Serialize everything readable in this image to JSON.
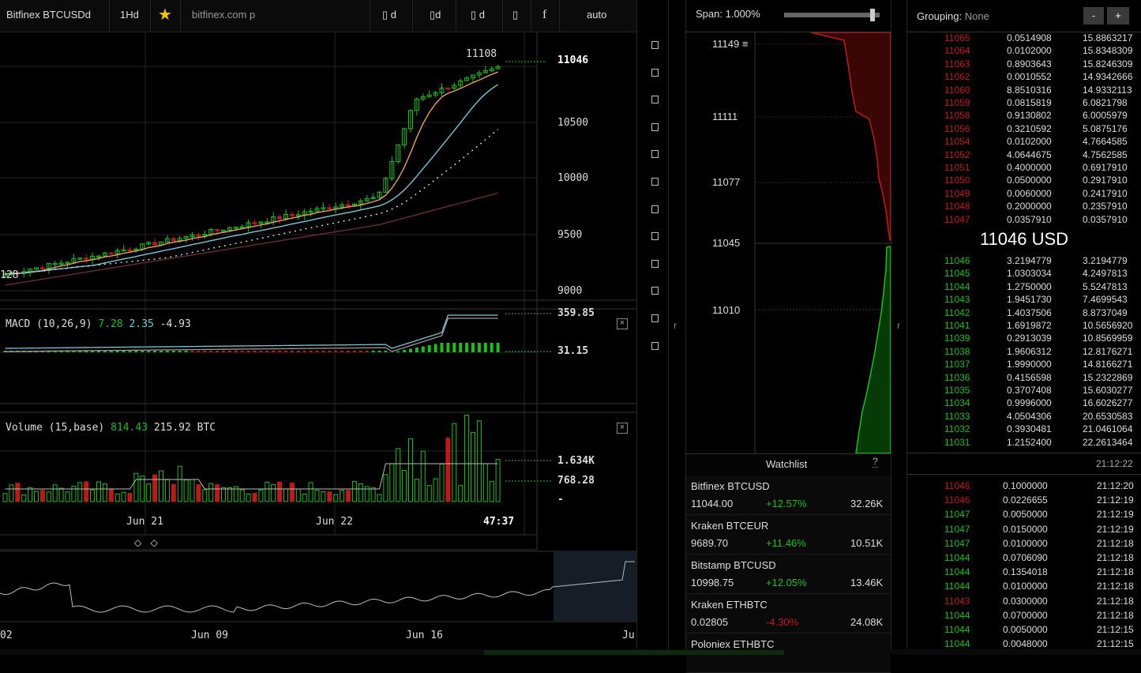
{
  "toolbar": {
    "symbol": "Bitfinex BTCUSDd",
    "interval": "1Hd",
    "star": "★",
    "url": "bitfinex.com p",
    "btn1": "▯ d",
    "btn2": "▯d",
    "btn3": "▯ d",
    "btn4": "▯",
    "btn5": "f",
    "scale": "auto"
  },
  "chart": {
    "price_axis": [
      "11046",
      "10500",
      "10000",
      "9500",
      "9000"
    ],
    "high_label": "11108",
    "low_label": "128",
    "last_price": "11046",
    "macd_title": "MACD (10,26,9)",
    "macd_v1": "7.28",
    "macd_v2": "2.35",
    "macd_v3": "-4.93",
    "macd_axis_top": "359.85",
    "macd_axis_mid": "31.15",
    "volume_title": "Volume (15,base)",
    "volume_v1": "814.43",
    "volume_v2": "215.92 BTC",
    "volume_axis_top": "1.634K",
    "volume_axis_mid": "768.28",
    "volume_axis_low": "-",
    "time_axis": [
      "Jun 21",
      "Jun 22"
    ],
    "cursor_time": "47:37",
    "nav_arrows": "◇ ◇",
    "navigator_dates": [
      "02",
      "Jun 09",
      "Jun 16",
      "Ju"
    ],
    "close_symbol": "×"
  },
  "depth": {
    "span_label": "Span:",
    "span_value": "1.000%",
    "span_fraction": 0.95,
    "price_labels": [
      "11149 ≡",
      "11111",
      "11077",
      "11045",
      "11010"
    ],
    "collapse_left": "r",
    "collapse_right": "r"
  },
  "watchlist": {
    "title": "Watchlist",
    "help": "?",
    "items": [
      {
        "name": "Bitfinex BTCUSD",
        "price": "11044.00",
        "change": "+12.57%",
        "volume": "32.26K",
        "up": true
      },
      {
        "name": "Kraken BTCEUR",
        "price": "9689.70",
        "change": "+11.46%",
        "volume": "10.51K",
        "up": true
      },
      {
        "name": "Bitstamp BTCUSD",
        "price": "10998.75",
        "change": "+12.05%",
        "volume": "13.46K",
        "up": true
      },
      {
        "name": "Kraken ETHBTC",
        "price": "0.02805",
        "change": "-4.30%",
        "volume": "24.08K",
        "up": false
      },
      {
        "name": "Poloniex ETHBTC",
        "price": "",
        "change": "",
        "volume": "",
        "up": true
      }
    ]
  },
  "orderbook": {
    "grouping_label": "Grouping:",
    "grouping_value": "None",
    "minus": "-",
    "plus": "+",
    "mid_price": "11046 USD",
    "asks": [
      [
        "11065",
        "0.0514908",
        "15.8863217"
      ],
      [
        "11064",
        "0.0102000",
        "15.8348309"
      ],
      [
        "11063",
        "0.8903643",
        "15.8246309"
      ],
      [
        "11062",
        "0.0010552",
        "14.9342666"
      ],
      [
        "11060",
        "8.8510316",
        "14.9332113"
      ],
      [
        "11059",
        "0.0815819",
        "6.0821798"
      ],
      [
        "11058",
        "0.9130802",
        "6.0005979"
      ],
      [
        "11056",
        "0.3210592",
        "5.0875176"
      ],
      [
        "11054",
        "0.0102000",
        "4.7664585"
      ],
      [
        "11052",
        "4.0644675",
        "4.7562585"
      ],
      [
        "11051",
        "0.4000000",
        "0.6917910"
      ],
      [
        "11050",
        "0.0500000",
        "0.2917910"
      ],
      [
        "11049",
        "0.0060000",
        "0.2417910"
      ],
      [
        "11048",
        "0.2000000",
        "0.2357910"
      ],
      [
        "11047",
        "0.0357910",
        "0.0357910"
      ]
    ],
    "bids": [
      [
        "11046",
        "3.2194779",
        "3.2194779"
      ],
      [
        "11045",
        "1.0303034",
        "4.2497813"
      ],
      [
        "11044",
        "1.2750000",
        "5.5247813"
      ],
      [
        "11043",
        "1.9451730",
        "7.4699543"
      ],
      [
        "11042",
        "1.4037506",
        "8.8737049"
      ],
      [
        "11041",
        "1.6919872",
        "10.5656920"
      ],
      [
        "11039",
        "0.2913039",
        "10.8569959"
      ],
      [
        "11038",
        "1.9606312",
        "12.8176271"
      ],
      [
        "11037",
        "1.9990000",
        "14.8166271"
      ],
      [
        "11036",
        "0.4156598",
        "15.2322869"
      ],
      [
        "11035",
        "0.3707408",
        "15.6030277"
      ],
      [
        "11034",
        "0.9996000",
        "16.6026277"
      ],
      [
        "11033",
        "4.0504306",
        "20.6530583"
      ],
      [
        "11032",
        "0.3930481",
        "21.0461064"
      ],
      [
        "11031",
        "1.2152400",
        "22.2613464"
      ]
    ],
    "book_time": "21:12:22"
  },
  "trades": [
    [
      "11046",
      "0.1000000",
      "21:12:20",
      "sell"
    ],
    [
      "11046",
      "0.0226655",
      "21:12:19",
      "sell"
    ],
    [
      "11047",
      "0.0050000",
      "21:12:19",
      "buy"
    ],
    [
      "11047",
      "0.0150000",
      "21:12:19",
      "buy"
    ],
    [
      "11047",
      "0.0100000",
      "21:12:18",
      "buy"
    ],
    [
      "11044",
      "0.0706090",
      "21:12:18",
      "buy"
    ],
    [
      "11044",
      "0.1354018",
      "21:12:18",
      "buy"
    ],
    [
      "11044",
      "0.0100000",
      "21:12:18",
      "buy"
    ],
    [
      "11043",
      "0.0300000",
      "21:12:18",
      "sell"
    ],
    [
      "11044",
      "0.0700000",
      "21:12:18",
      "buy"
    ],
    [
      "11044",
      "0.0050000",
      "21:12:15",
      "buy"
    ],
    [
      "11044",
      "0.0048000",
      "21:12:15",
      "buy"
    ]
  ],
  "colors": {
    "up": "#19c019",
    "down": "#c01818",
    "bg": "#000000"
  },
  "right_toolbar_icons": [
    "square-icon",
    "square-icon",
    "square-icon",
    "square-icon",
    "square-icon",
    "square-icon",
    "square-icon",
    "square-icon",
    "square-icon",
    "square-icon",
    "square-icon",
    "square-icon"
  ]
}
